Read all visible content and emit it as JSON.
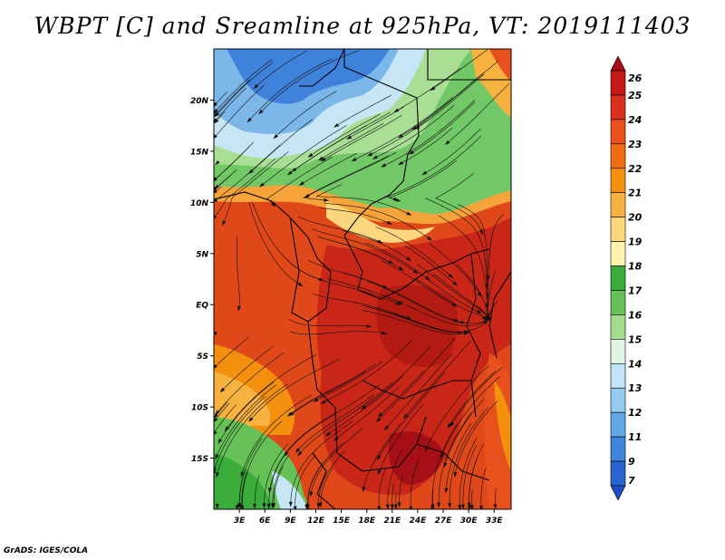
{
  "title": "WBPT [C] and Sreamline at 925hPa, VT: 2019111403",
  "credit": "GrADS: IGES/COLA",
  "map": {
    "lat_labels": [
      "20N",
      "15N",
      "10N",
      "5N",
      "EQ",
      "5S",
      "10S",
      "15S"
    ],
    "lon_labels": [
      "3E",
      "6E",
      "9E",
      "12E",
      "15E",
      "18E",
      "21E",
      "24E",
      "27E",
      "30E",
      "33E"
    ],
    "lat_values": [
      20,
      15,
      10,
      5,
      0,
      -5,
      -10,
      -15
    ],
    "lon_values": [
      3,
      6,
      9,
      12,
      15,
      18,
      21,
      24,
      27,
      30,
      33
    ],
    "lat_range": [
      -20,
      25
    ],
    "lon_range": [
      0,
      35
    ]
  },
  "colorbar": {
    "labels": [
      "26",
      "25",
      "24",
      "23",
      "22",
      "21",
      "20",
      "19",
      "18",
      "17",
      "16",
      "15",
      "14",
      "13",
      "12",
      "11",
      "9",
      "7"
    ],
    "colors": [
      "#a50f15",
      "#c41a16",
      "#d7301f",
      "#e8501c",
      "#f06d14",
      "#f5900f",
      "#f7b240",
      "#fdd67e",
      "#fff3b0",
      "#3aac3a",
      "#66c256",
      "#a3dd8c",
      "#e3f5e5",
      "#c3e3f7",
      "#94cbf0",
      "#62a9e6",
      "#3d86dd",
      "#2a64d0",
      "#1f4ec4"
    ]
  }
}
